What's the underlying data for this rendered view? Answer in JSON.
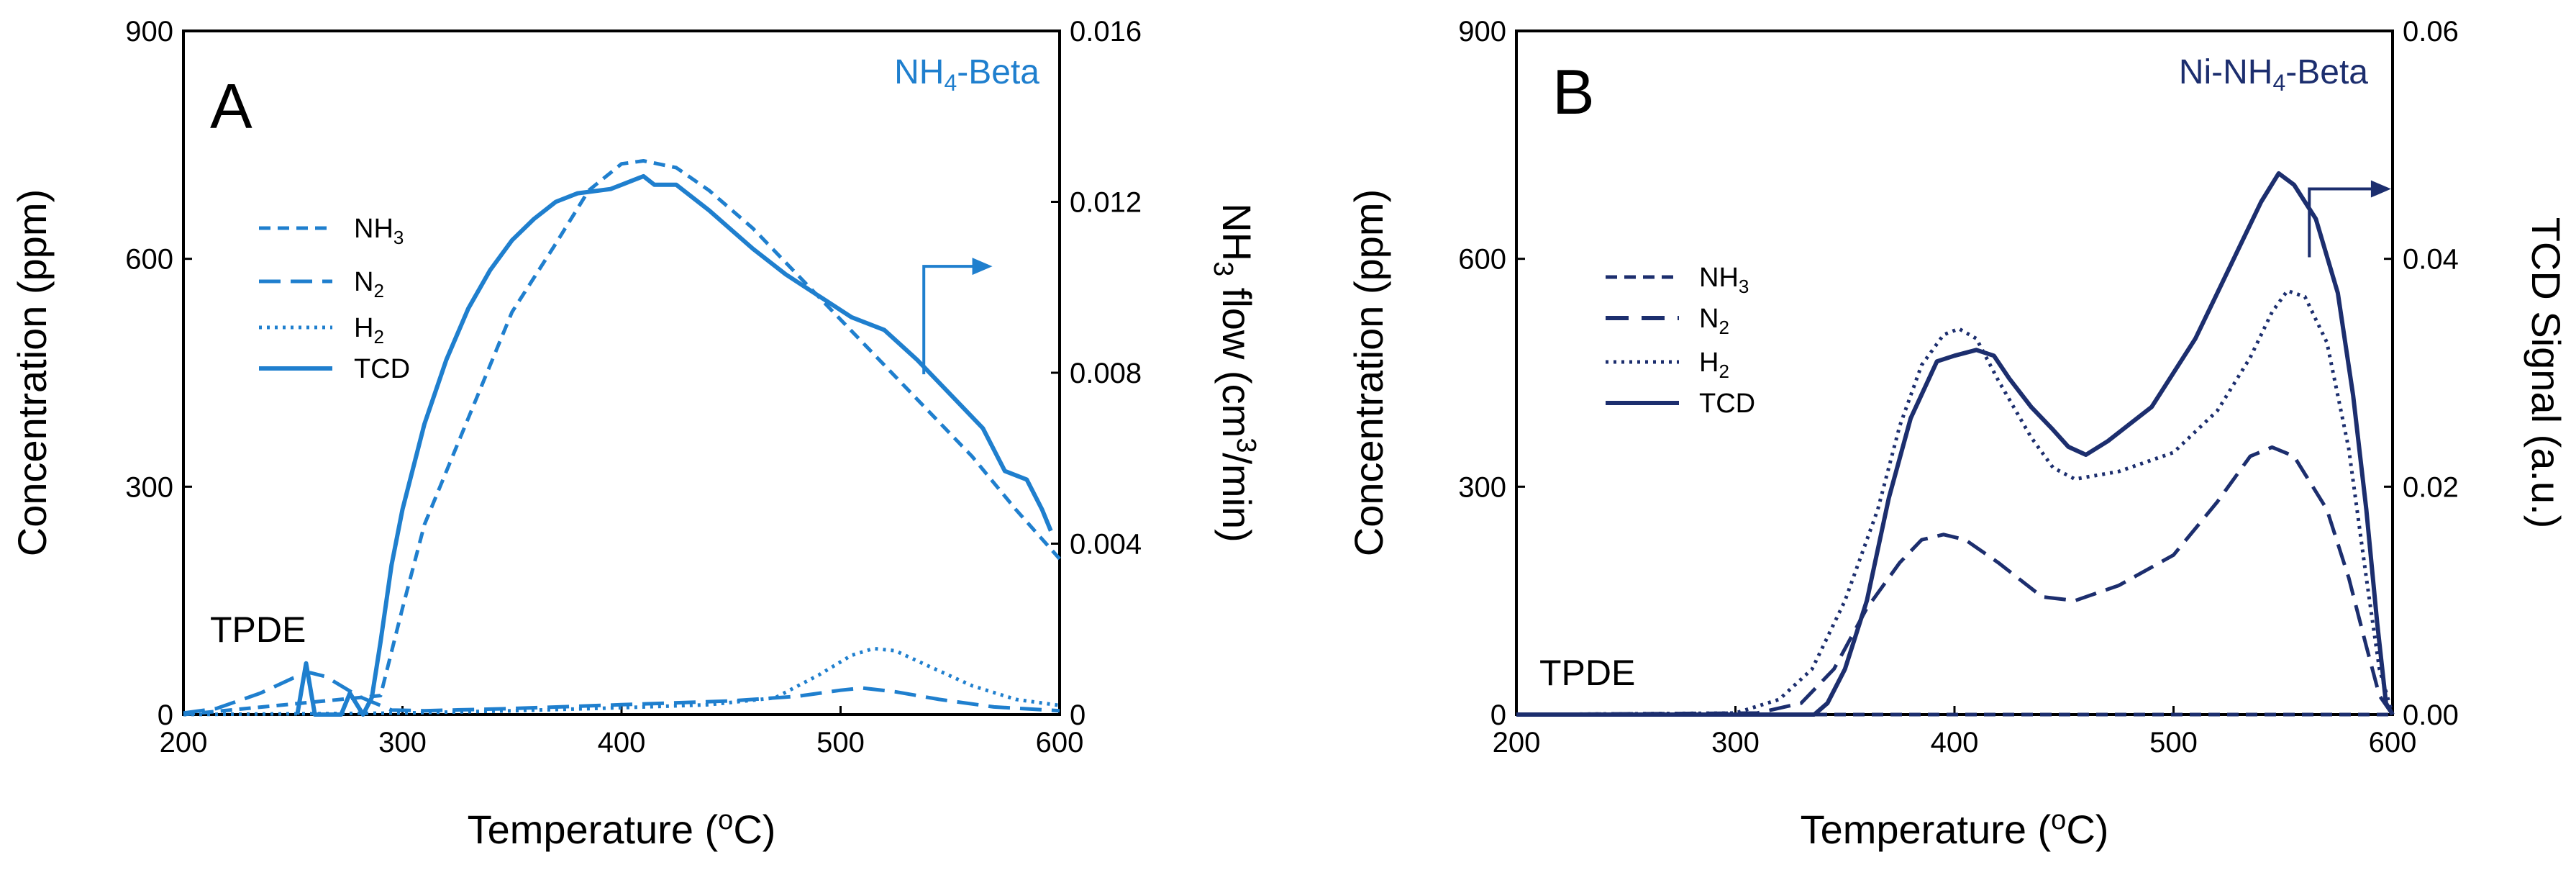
{
  "chart_data": [
    {
      "type": "line",
      "panel": "A",
      "sample_label": {
        "main": "NH",
        "sub": "4",
        "rest": "-Beta"
      },
      "color": "#1f7fce",
      "xlabel": {
        "main": "Temperature (",
        "sup": "o",
        "rest": "C)"
      },
      "ylabel_left": "Concentration (ppm)",
      "ylabel_right": {
        "main": "NH",
        "sub": "3",
        "mid": " flow (cm",
        "sup": "3",
        "rest": "/min)"
      },
      "xlim": [
        200,
        600
      ],
      "ylim_left": [
        0,
        900
      ],
      "ylim_right": [
        0,
        0.016
      ],
      "x_ticks": [
        "200",
        "300",
        "400",
        "500",
        "600"
      ],
      "y_left_ticks": [
        "0",
        "300",
        "600",
        "900"
      ],
      "y_right_ticks": [
        "0",
        "0.004",
        "0.008",
        "0.012",
        "0.016"
      ],
      "annotation": "TPDE",
      "tcd_axis": "right",
      "arrow": {
        "x": 538,
        "y_left": 448,
        "dx": 30,
        "dy": 36
      },
      "series": [
        {
          "name": "NH3",
          "legend": {
            "main": "NH",
            "sub": "3"
          },
          "style": "dash-short",
          "axis": "left",
          "points": [
            [
              200,
              0
            ],
            [
              290,
              25
            ],
            [
              300,
              140
            ],
            [
              310,
              250
            ],
            [
              330,
              390
            ],
            [
              350,
              530
            ],
            [
              370,
              620
            ],
            [
              385,
              690
            ],
            [
              400,
              725
            ],
            [
              410,
              729
            ],
            [
              425,
              720
            ],
            [
              440,
              690
            ],
            [
              460,
              640
            ],
            [
              480,
              580
            ],
            [
              500,
              520
            ],
            [
              520,
              460
            ],
            [
              540,
              400
            ],
            [
              560,
              340
            ],
            [
              580,
              270
            ],
            [
              600,
              205
            ]
          ]
        },
        {
          "name": "N2",
          "legend": {
            "main": "N",
            "sub": "2"
          },
          "style": "dash-long",
          "axis": "left",
          "points": [
            [
              200,
              2
            ],
            [
              215,
              8
            ],
            [
              235,
              28
            ],
            [
              250,
              48
            ],
            [
              258,
              55
            ],
            [
              265,
              50
            ],
            [
              280,
              24
            ],
            [
              295,
              6
            ],
            [
              310,
              5
            ],
            [
              350,
              8
            ],
            [
              400,
              13
            ],
            [
              450,
              18
            ],
            [
              480,
              24
            ],
            [
              500,
              32
            ],
            [
              510,
              35
            ],
            [
              525,
              30
            ],
            [
              545,
              20
            ],
            [
              570,
              10
            ],
            [
              600,
              5
            ]
          ]
        },
        {
          "name": "H2",
          "legend": {
            "main": "H",
            "sub": "2"
          },
          "style": "dot",
          "axis": "left",
          "points": [
            [
              200,
              0
            ],
            [
              300,
              2
            ],
            [
              350,
              5
            ],
            [
              400,
              9
            ],
            [
              440,
              13
            ],
            [
              470,
              22
            ],
            [
              490,
              52
            ],
            [
              505,
              78
            ],
            [
              515,
              87
            ],
            [
              525,
              84
            ],
            [
              540,
              64
            ],
            [
              560,
              38
            ],
            [
              580,
              20
            ],
            [
              600,
              12
            ]
          ]
        },
        {
          "name": "TCD",
          "legend": {
            "main": "TCD",
            "sub": ""
          },
          "style": "solid",
          "axis": "right",
          "points": [
            [
              252,
              0.0
            ],
            [
              256,
              0.0012
            ],
            [
              260,
              0.0
            ],
            [
              272,
              0.0
            ],
            [
              276,
              0.0005
            ],
            [
              282,
              0.0
            ],
            [
              286,
              0.0004
            ],
            [
              290,
              0.0017
            ],
            [
              295,
              0.0035
            ],
            [
              300,
              0.0048
            ],
            [
              310,
              0.0068
            ],
            [
              320,
              0.0083
            ],
            [
              330,
              0.0095
            ],
            [
              340,
              0.0104
            ],
            [
              350,
              0.0111
            ],
            [
              360,
              0.0116
            ],
            [
              370,
              0.012
            ],
            [
              380,
              0.0122
            ],
            [
              395,
              0.0123
            ],
            [
              400,
              0.0124
            ],
            [
              410,
              0.0126
            ],
            [
              415,
              0.0124
            ],
            [
              425,
              0.0124
            ],
            [
              440,
              0.0118
            ],
            [
              460,
              0.0109
            ],
            [
              475,
              0.0103
            ],
            [
              490,
              0.0098
            ],
            [
              505,
              0.0093
            ],
            [
              520,
              0.009
            ],
            [
              535,
              0.0083
            ],
            [
              550,
              0.0075
            ],
            [
              565,
              0.0067
            ],
            [
              575,
              0.0057
            ],
            [
              585,
              0.0055
            ],
            [
              592,
              0.0048
            ],
            [
              596,
              0.0043
            ]
          ]
        }
      ]
    },
    {
      "type": "line",
      "panel": "B",
      "sample_label": {
        "main": "Ni-NH",
        "sub": "4",
        "rest": "-Beta"
      },
      "color": "#1c2e6e",
      "xlabel": {
        "main": "Temperature (",
        "sup": "o",
        "rest": "C)"
      },
      "ylabel_left": "Concentration (ppm)",
      "ylabel_right": {
        "main": "TCD Signal (a.u.)",
        "sub": "",
        "mid": "",
        "sup": "",
        "rest": ""
      },
      "xlim": [
        200,
        600
      ],
      "ylim_left": [
        0,
        900
      ],
      "ylim_right": [
        0,
        0.06
      ],
      "x_ticks": [
        "200",
        "300",
        "400",
        "500",
        "600"
      ],
      "y_left_ticks": [
        "0",
        "300",
        "600",
        "900"
      ],
      "y_right_ticks": [
        "0.00",
        "0.02",
        "0.04",
        "0.06"
      ],
      "annotation": "TPDE",
      "tcd_axis": "right",
      "arrow": {
        "x": 562,
        "y_left": 692,
        "dx": 36,
        "dy": 0
      },
      "series": [
        {
          "name": "NH3",
          "legend": {
            "main": "NH",
            "sub": "3"
          },
          "style": "dash-short",
          "axis": "left",
          "points": [
            [
              200,
              0
            ],
            [
              595,
              0
            ],
            [
              600,
              0
            ]
          ]
        },
        {
          "name": "N2",
          "legend": {
            "main": "N",
            "sub": "2"
          },
          "style": "dash-long",
          "axis": "left",
          "points": [
            [
              200,
              0
            ],
            [
              310,
              2
            ],
            [
              330,
              15
            ],
            [
              345,
              60
            ],
            [
              360,
              140
            ],
            [
              375,
              200
            ],
            [
              385,
              230
            ],
            [
              395,
              237
            ],
            [
              405,
              230
            ],
            [
              420,
              200
            ],
            [
              440,
              155
            ],
            [
              455,
              150
            ],
            [
              475,
              170
            ],
            [
              500,
              210
            ],
            [
              520,
              280
            ],
            [
              535,
              340
            ],
            [
              545,
              352
            ],
            [
              555,
              340
            ],
            [
              570,
              270
            ],
            [
              580,
              180
            ],
            [
              588,
              90
            ],
            [
              594,
              25
            ],
            [
              600,
              0
            ]
          ]
        },
        {
          "name": "H2",
          "legend": {
            "main": "H",
            "sub": "2"
          },
          "style": "dot",
          "axis": "left",
          "points": [
            [
              200,
              0
            ],
            [
              300,
              2
            ],
            [
              320,
              20
            ],
            [
              335,
              60
            ],
            [
              350,
              150
            ],
            [
              365,
              270
            ],
            [
              375,
              380
            ],
            [
              385,
              460
            ],
            [
              395,
              500
            ],
            [
              402,
              508
            ],
            [
              410,
              495
            ],
            [
              420,
              440
            ],
            [
              435,
              365
            ],
            [
              445,
              325
            ],
            [
              455,
              310
            ],
            [
              475,
              320
            ],
            [
              500,
              345
            ],
            [
              520,
              400
            ],
            [
              535,
              470
            ],
            [
              545,
              530
            ],
            [
              552,
              558
            ],
            [
              560,
              550
            ],
            [
              570,
              490
            ],
            [
              580,
              350
            ],
            [
              588,
              180
            ],
            [
              594,
              60
            ],
            [
              600,
              0
            ]
          ]
        },
        {
          "name": "TCD",
          "legend": {
            "main": "TCD",
            "sub": ""
          },
          "style": "solid",
          "axis": "right",
          "points": [
            [
              200,
              0
            ],
            [
              336,
              0
            ],
            [
              342,
              0.001
            ],
            [
              350,
              0.004
            ],
            [
              360,
              0.01
            ],
            [
              370,
              0.019
            ],
            [
              380,
              0.026
            ],
            [
              392,
              0.031
            ],
            [
              400,
              0.0315
            ],
            [
              410,
              0.032
            ],
            [
              418,
              0.0315
            ],
            [
              425,
              0.0295
            ],
            [
              435,
              0.027
            ],
            [
              445,
              0.025
            ],
            [
              452,
              0.0235
            ],
            [
              460,
              0.0228
            ],
            [
              470,
              0.024
            ],
            [
              480,
              0.0255
            ],
            [
              490,
              0.027
            ],
            [
              500,
              0.03
            ],
            [
              510,
              0.033
            ],
            [
              520,
              0.037
            ],
            [
              530,
              0.041
            ],
            [
              540,
              0.045
            ],
            [
              548,
              0.0475
            ],
            [
              555,
              0.0465
            ],
            [
              565,
              0.0435
            ],
            [
              575,
              0.037
            ],
            [
              582,
              0.028
            ],
            [
              588,
              0.018
            ],
            [
              593,
              0.008
            ],
            [
              597,
              0.001
            ],
            [
              600,
              0
            ]
          ]
        }
      ]
    }
  ]
}
